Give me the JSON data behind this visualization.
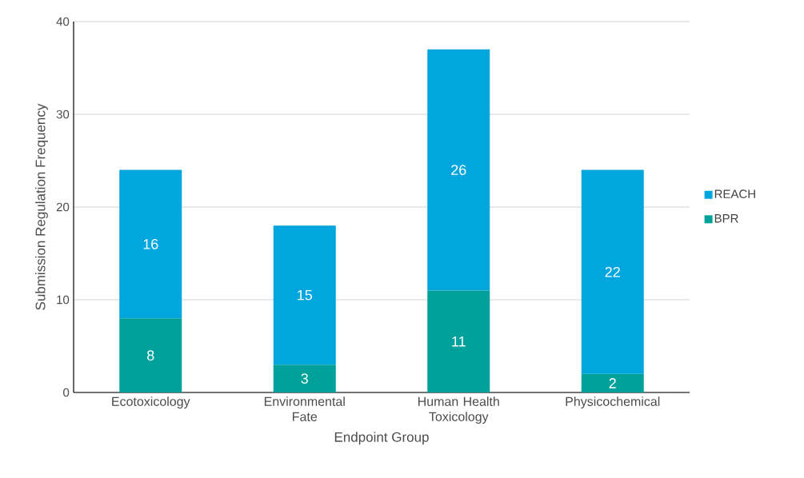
{
  "chart_data": {
    "type": "bar",
    "stacked": true,
    "xlabel": "Endpoint Group",
    "ylabel": "Submission Regulation Frequency",
    "categories": [
      "Ecotoxicology",
      "Environmental Fate",
      "Human Health Toxicology",
      "Physicochemical"
    ],
    "series": [
      {
        "name": "BPR",
        "color": "#00a19a",
        "values": [
          8,
          3,
          11,
          2
        ]
      },
      {
        "name": "REACH",
        "color": "#02a6df",
        "values": [
          16,
          15,
          26,
          22
        ]
      }
    ],
    "ylim": [
      0,
      40
    ],
    "yticks": [
      0,
      10,
      20,
      30,
      40
    ],
    "grid": "y",
    "legend": "right",
    "data_labels": true
  }
}
